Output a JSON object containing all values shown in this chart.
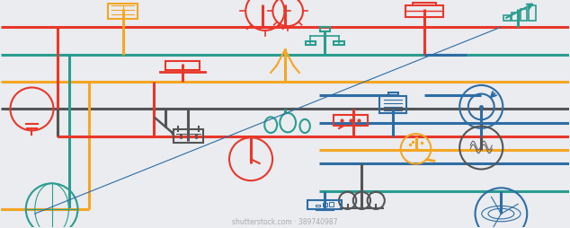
{
  "bg_color": "#eaecf0",
  "colors": {
    "red": "#e8372a",
    "teal": "#2a9d8f",
    "yellow": "#f5a623",
    "dark": "#555555",
    "blue": "#2e6da4",
    "gray": "#888888",
    "light_blue": "#4a90c4"
  },
  "watermark": "shutterstock.com · 389740987",
  "lw": 2.2,
  "icon_lw": 1.5,
  "icon_r": 0.032
}
